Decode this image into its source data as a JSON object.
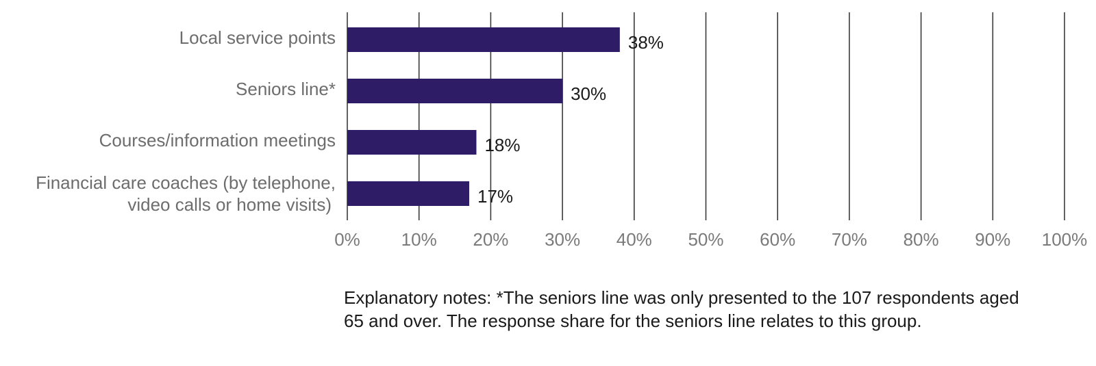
{
  "chart_data": {
    "type": "bar",
    "orientation": "horizontal",
    "categories": [
      [
        "Local service points"
      ],
      [
        "Seniors line*"
      ],
      [
        "Courses/information meetings"
      ],
      [
        "Financial care coaches (by telephone,",
        "video calls or home visits)"
      ]
    ],
    "values": [
      38,
      30,
      18,
      17
    ],
    "value_labels": [
      "38%",
      "30%",
      "18%",
      "17%"
    ],
    "xlim": [
      0,
      100
    ],
    "xticks": [
      0,
      10,
      20,
      30,
      40,
      50,
      60,
      70,
      80,
      90,
      100
    ],
    "xtick_labels": [
      "0%",
      "10%",
      "20%",
      "30%",
      "40%",
      "50%",
      "60%",
      "70%",
      "80%",
      "90%",
      "100%"
    ],
    "grid": true,
    "bar_color": "#2e1c66",
    "title": "",
    "xlabel": "",
    "ylabel": ""
  },
  "note": "Explanatory notes: *The seniors line was only presented to the 107 respondents aged 65 and over. The response share for the seniors line relates to this group."
}
